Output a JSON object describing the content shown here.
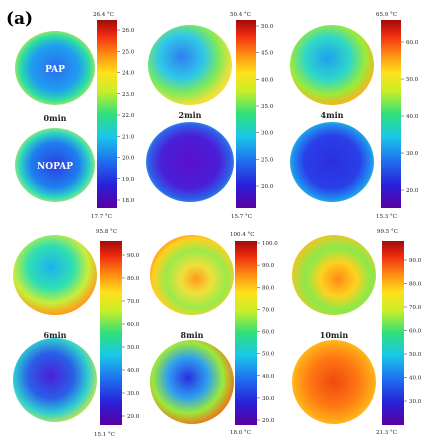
{
  "figure": {
    "panel_label": "(a)",
    "sample_labels": {
      "top": "PAP",
      "bottom": "NOPAP"
    },
    "panels": [
      {
        "time": "0min",
        "scale_max": "26.4 °C",
        "scale_min": "17.7 °C",
        "ticks": [
          "26.0",
          "25.0",
          "24.0",
          "23.0",
          "22.0",
          "21.0",
          "20.0",
          "19.0",
          "18.0"
        ]
      },
      {
        "time": "2min",
        "scale_max": "50.4 °C",
        "scale_min": "15.7 °C",
        "ticks": [
          "50.0",
          "45.0",
          "40.0",
          "35.0",
          "30.0",
          "25.0",
          "20.0"
        ]
      },
      {
        "time": "4min",
        "scale_max": "65.9 °C",
        "scale_min": "15.3 °C",
        "ticks": [
          "60.0",
          "50.0",
          "40.0",
          "30.0",
          "20.0"
        ]
      },
      {
        "time": "6min",
        "scale_max": "95.8 °C",
        "scale_min": "15.1 °C",
        "ticks": [
          "90.0",
          "80.0",
          "70.0",
          "60.0",
          "50.0",
          "40.0",
          "30.0",
          "20.0"
        ]
      },
      {
        "time": "8min",
        "scale_max": "100.4 °C",
        "scale_min": "18.0 °C",
        "ticks": [
          "100.0",
          "90.0",
          "80.0",
          "70.0",
          "60.0",
          "50.0",
          "40.0",
          "30.0",
          "20.0"
        ]
      },
      {
        "time": "10min",
        "scale_max": "99.5 °C",
        "scale_min": "21.3 °C",
        "ticks": [
          "90.0",
          "80.0",
          "70.0",
          "60.0",
          "50.0",
          "40.0",
          "30.0"
        ]
      }
    ]
  },
  "colors": {
    "scale": [
      "#5a00a0",
      "#2a1fd8",
      "#1f6ff0",
      "#19c8e8",
      "#2fe07a",
      "#c8ee2a",
      "#ffe11a",
      "#ff8a12",
      "#ee2a0f",
      "#a00a0a"
    ]
  }
}
